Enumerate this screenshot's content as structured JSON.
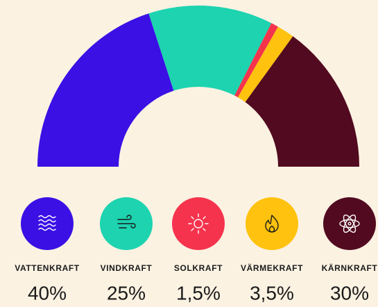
{
  "chart_data": {
    "type": "donut",
    "categories": [
      "VATTENKRAFT",
      "VINDKRAFT",
      "SOLKRAFT",
      "VÄRMEKRAFT",
      "KÄRNKRAFT"
    ],
    "values": [
      40,
      25,
      1.5,
      3.5,
      30
    ],
    "value_labels": [
      "40%",
      "25%",
      "1,5%",
      "3,5%",
      "30%"
    ],
    "colors": [
      "#3a10e5",
      "#1dd3b0",
      "#f5334d",
      "#ffc20e",
      "#520a20"
    ]
  }
}
